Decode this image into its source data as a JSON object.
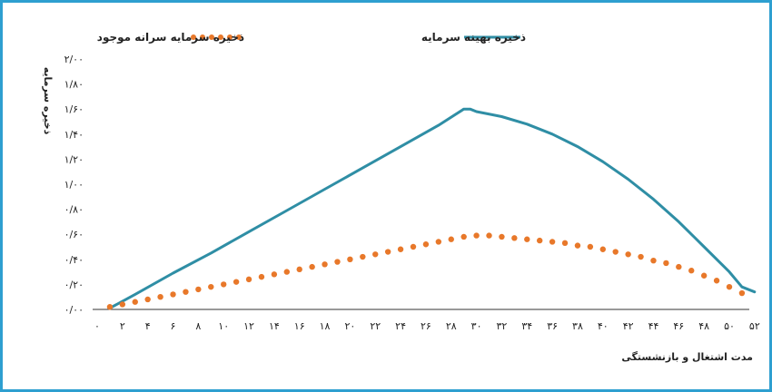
{
  "chart_data": {
    "type": "line",
    "title": "",
    "xlabel": "مدت اشتغال و بازنشستگی",
    "ylabel": "ذخیره سرمایه",
    "x_ticks": [
      0,
      2,
      4,
      6,
      8,
      10,
      12,
      14,
      16,
      18,
      20,
      22,
      24,
      26,
      28,
      30,
      32,
      34,
      36,
      38,
      40,
      42,
      44,
      46,
      48,
      50,
      52
    ],
    "x_tick_labels": [
      "۰",
      "۲",
      "۴",
      "۶",
      "۸",
      "۱۰",
      "۱۲",
      "۱۴",
      "۱۶",
      "۱۸",
      "۲۰",
      "۲۲",
      "۲۴",
      "۲۶",
      "۲۸",
      "۳۰",
      "۳۲",
      "۳۴",
      "۳۶",
      "۳۸",
      "۴۰",
      "۴۲",
      "۴۴",
      "۴۶",
      "۴۸",
      "۵۰",
      "۵۲"
    ],
    "y_ticks": [
      0,
      0.2,
      0.4,
      0.6,
      0.8,
      1.0,
      1.2,
      1.4,
      1.6,
      1.8,
      2.0
    ],
    "y_tick_labels": [
      "۰/۰۰",
      "۰/۲۰",
      "۰/۴۰",
      "۰/۶۰",
      "۰/۸۰",
      "۱/۰۰",
      "۱/۲۰",
      "۱/۴۰",
      "۱/۶۰",
      "۱/۸۰",
      "۲/۰۰"
    ],
    "xlim": [
      0,
      53
    ],
    "ylim": [
      0,
      2.0
    ],
    "grid": false,
    "legend_position": "top",
    "series": [
      {
        "name": "ذخیره بهینه سرمایه",
        "style": "solid",
        "color": "#2f8ea5",
        "x": [
          1,
          3,
          6,
          9,
          12,
          15,
          18,
          21,
          24,
          27,
          29,
          29.5,
          30,
          32,
          34,
          36,
          38,
          40,
          42,
          44,
          46,
          48,
          50,
          51,
          52
        ],
        "y": [
          0.01,
          0.12,
          0.29,
          0.45,
          0.62,
          0.79,
          0.96,
          1.13,
          1.3,
          1.47,
          1.6,
          1.6,
          1.58,
          1.54,
          1.48,
          1.4,
          1.3,
          1.18,
          1.04,
          0.88,
          0.7,
          0.5,
          0.3,
          0.18,
          0.14
        ]
      },
      {
        "name": "ذخیره سرمایه سرانه موجود",
        "style": "dotted",
        "color": "#e8782a",
        "x": [
          1,
          2,
          3,
          4,
          5,
          6,
          7,
          8,
          9,
          10,
          11,
          12,
          13,
          14,
          15,
          16,
          17,
          18,
          19,
          20,
          21,
          22,
          23,
          24,
          25,
          26,
          27,
          28,
          29,
          30,
          31,
          32,
          33,
          34,
          35,
          36,
          37,
          38,
          39,
          40,
          41,
          42,
          43,
          44,
          45,
          46,
          47,
          48,
          49,
          50,
          51
        ],
        "y": [
          0.02,
          0.04,
          0.06,
          0.08,
          0.1,
          0.12,
          0.14,
          0.16,
          0.18,
          0.2,
          0.22,
          0.24,
          0.26,
          0.28,
          0.3,
          0.32,
          0.34,
          0.36,
          0.38,
          0.4,
          0.42,
          0.44,
          0.46,
          0.48,
          0.5,
          0.52,
          0.54,
          0.56,
          0.58,
          0.59,
          0.59,
          0.58,
          0.57,
          0.56,
          0.55,
          0.54,
          0.53,
          0.51,
          0.5,
          0.48,
          0.46,
          0.44,
          0.42,
          0.39,
          0.37,
          0.34,
          0.31,
          0.27,
          0.23,
          0.18,
          0.13
        ]
      }
    ]
  }
}
